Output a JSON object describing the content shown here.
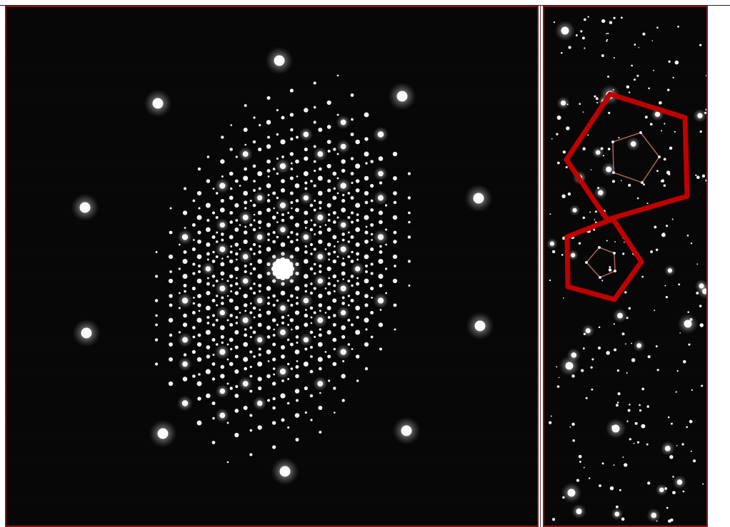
{
  "figure": {
    "left_panel": {
      "content": "diffraction-pattern"
    },
    "right_panel": {
      "content": "diffraction-pattern-detail",
      "overlay_color": "#c00000",
      "overlay_inner_color": "#b06060"
    },
    "background_color": "#050505",
    "spot_color": "#ffffff",
    "frame_color": "#8a1414"
  }
}
